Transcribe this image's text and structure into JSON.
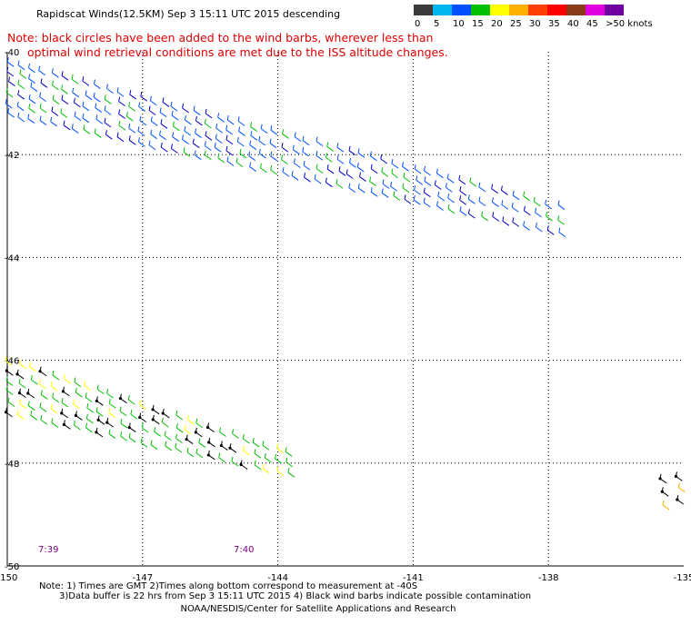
{
  "title": "Rapidscat Winds(12.5KM) Sep  3 15:11 UTC 2015 descending",
  "note": {
    "line1": "Note: black circles have been added to the wind barbs, wherever less than",
    "line2": "optimal wind retrieval conditions are met due to the ISS altitude changes."
  },
  "legend": {
    "unit": "knots",
    "bins": [
      {
        "label": "0",
        "color": "#3a3a3a"
      },
      {
        "label": "5",
        "color": "#00b4f0"
      },
      {
        "label": "10",
        "color": "#0050ff"
      },
      {
        "label": "15",
        "color": "#00c000"
      },
      {
        "label": "20",
        "color": "#ffff00"
      },
      {
        "label": "25",
        "color": "#ffb000"
      },
      {
        "label": "30",
        "color": "#ff4000"
      },
      {
        "label": "35",
        "color": "#ff0000"
      },
      {
        "label": "40",
        "color": "#8b3a1a"
      },
      {
        "label": "45",
        "color": "#e000e0"
      },
      {
        "label": ">50",
        "color": "#7000a0"
      }
    ],
    "last_label": ">50 knots"
  },
  "axes": {
    "lon_ticks": [
      "-150",
      "-147",
      "-144",
      "-141",
      "-138",
      "-135"
    ],
    "lat_ticks": [
      "-40",
      "-42",
      "-44",
      "-46",
      "-48",
      "-50"
    ],
    "lon_range": [
      -150,
      -135
    ],
    "lat_range": [
      -40,
      -50
    ],
    "grid": "dotted"
  },
  "time_labels": [
    {
      "text": "7:39",
      "lon": -149
    },
    {
      "text": "7:40",
      "lon": -145
    }
  ],
  "footer": {
    "line1": "Note: 1) Times are GMT 2)Times along bottom correspond to measurement at -40S",
    "line2": "3)Data buffer is 22 hrs from Sep  3 15:11 UTC 2015 4) Black wind barbs indicate possible contamination",
    "line3": "NOAA/NESDIS/Center for Satellite Applications and Research"
  },
  "swaths": [
    {
      "name": "upper-swath",
      "lon_start": -150,
      "lon_end": -137.8,
      "lat_top_start": -40.2,
      "lat_top_end": -43.0,
      "lat_bot_start": -41.2,
      "lat_bot_end": -43.5,
      "colors": [
        "#0050ff",
        "#0050ff",
        "#0000c8",
        "#00c000"
      ]
    },
    {
      "name": "lower-swath",
      "lon_start": -150,
      "lon_end": -143.8,
      "lat_top_start": -46.0,
      "lat_top_end": -47.8,
      "lat_bot_start": -47.0,
      "lat_bot_end": -48.2,
      "colors": [
        "#00c000",
        "#ffff00",
        "#00c000",
        "#000000"
      ]
    },
    {
      "name": "right-swath",
      "lon_start": -135.5,
      "lon_end": -134.8,
      "lat_top_start": -48.3,
      "lat_top_end": -48.2,
      "lat_bot_start": -48.8,
      "lat_bot_end": -48.6,
      "colors": [
        "#ffb000",
        "#ffff00",
        "#000000"
      ]
    }
  ]
}
